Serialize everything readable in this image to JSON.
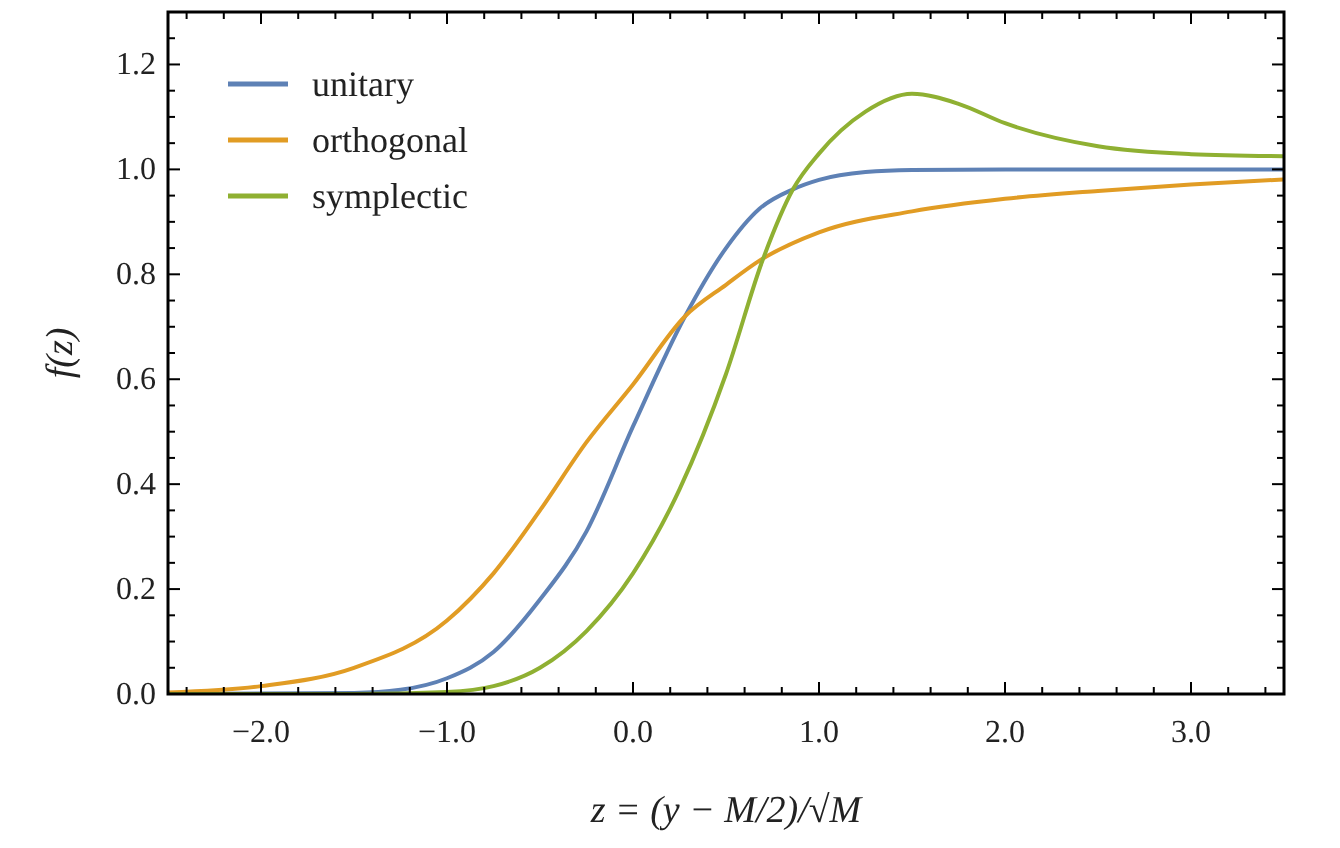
{
  "chart_data": {
    "type": "line",
    "xlabel": "z = (y − M/2)/√M",
    "ylabel": "f(z)",
    "legend": "top left",
    "grid": false,
    "line_style": "solid",
    "marker": "none",
    "xlim": [
      -2.5,
      3.5
    ],
    "ylim": [
      0,
      1.3
    ],
    "xticks": [
      {
        "value": -2.4,
        "label": null
      },
      {
        "value": -2.2,
        "label": null
      },
      {
        "value": -2,
        "label": "−2.0"
      },
      {
        "value": -1.8,
        "label": null
      },
      {
        "value": -1.6,
        "label": null
      },
      {
        "value": -1.4,
        "label": null
      },
      {
        "value": -1.2,
        "label": null
      },
      {
        "value": -1,
        "label": "−1.0"
      },
      {
        "value": -0.8,
        "label": null
      },
      {
        "value": -0.6,
        "label": null
      },
      {
        "value": -0.4,
        "label": null
      },
      {
        "value": -0.2,
        "label": null
      },
      {
        "value": 0,
        "label": "0.0"
      },
      {
        "value": 0.2,
        "label": null
      },
      {
        "value": 0.4,
        "label": null
      },
      {
        "value": 0.6,
        "label": null
      },
      {
        "value": 0.8,
        "label": null
      },
      {
        "value": 1,
        "label": "1.0"
      },
      {
        "value": 1.2,
        "label": null
      },
      {
        "value": 1.4,
        "label": null
      },
      {
        "value": 1.6,
        "label": null
      },
      {
        "value": 1.8,
        "label": null
      },
      {
        "value": 2,
        "label": "2.0"
      },
      {
        "value": 2.2,
        "label": null
      },
      {
        "value": 2.4,
        "label": null
      },
      {
        "value": 2.6,
        "label": null
      },
      {
        "value": 2.8,
        "label": null
      },
      {
        "value": 3,
        "label": "3.0"
      },
      {
        "value": 3.2,
        "label": null
      },
      {
        "value": 3.4,
        "label": null
      }
    ],
    "yticks": [
      {
        "value": 0,
        "label": "0.0"
      },
      {
        "value": 0.05,
        "label": null
      },
      {
        "value": 0.1,
        "label": null
      },
      {
        "value": 0.15,
        "label": null
      },
      {
        "value": 0.2,
        "label": "0.2"
      },
      {
        "value": 0.25,
        "label": null
      },
      {
        "value": 0.3,
        "label": null
      },
      {
        "value": 0.35,
        "label": null
      },
      {
        "value": 0.4,
        "label": "0.4"
      },
      {
        "value": 0.45,
        "label": null
      },
      {
        "value": 0.5,
        "label": null
      },
      {
        "value": 0.55,
        "label": null
      },
      {
        "value": 0.6,
        "label": "0.6"
      },
      {
        "value": 0.65,
        "label": null
      },
      {
        "value": 0.7,
        "label": null
      },
      {
        "value": 0.75,
        "label": null
      },
      {
        "value": 0.8,
        "label": "0.8"
      },
      {
        "value": 0.85,
        "label": null
      },
      {
        "value": 0.9,
        "label": null
      },
      {
        "value": 0.95,
        "label": null
      },
      {
        "value": 1,
        "label": "1.0"
      },
      {
        "value": 1.05,
        "label": null
      },
      {
        "value": 1.1,
        "label": null
      },
      {
        "value": 1.15,
        "label": null
      },
      {
        "value": 1.2,
        "label": "1.2"
      },
      {
        "value": 1.25,
        "label": null
      }
    ],
    "series": [
      {
        "name": "unitary",
        "color": "#5e81b5",
        "x": [
          -2.5,
          -1.5,
          -1.25,
          -1,
          -0.75,
          -0.5,
          -0.25,
          0,
          0.28,
          0.5,
          0.68,
          0.86,
          1,
          1.25,
          1.5,
          2,
          2.5,
          3,
          3.5
        ],
        "values": [
          0,
          0.002,
          0.008,
          0.03,
          0.08,
          0.18,
          0.31,
          0.51,
          0.72,
          0.85,
          0.925,
          0.962,
          0.98,
          0.995,
          0.999,
          1,
          1,
          1,
          1
        ]
      },
      {
        "name": "orthogonal",
        "color": "#e19c24",
        "x": [
          -2.5,
          -2,
          -1.5,
          -1,
          -0.75,
          -0.5,
          -0.25,
          0,
          0.28,
          0.5,
          0.68,
          1,
          1.5,
          2,
          2.5,
          3,
          3.5
        ],
        "values": [
          0.003,
          0.015,
          0.05,
          0.14,
          0.23,
          0.35,
          0.48,
          0.59,
          0.72,
          0.78,
          0.826,
          0.88,
          0.92,
          0.944,
          0.959,
          0.971,
          0.981
        ]
      },
      {
        "name": "symplectic",
        "color": "#8fb032",
        "x": [
          -2.5,
          -1.5,
          -1,
          -0.75,
          -0.5,
          -0.25,
          0,
          0.25,
          0.5,
          0.7,
          0.86,
          1,
          1.25,
          1.5,
          1.75,
          2,
          2.5,
          3,
          3.5
        ],
        "values": [
          0,
          0,
          0.004,
          0.015,
          0.05,
          0.12,
          0.23,
          0.39,
          0.61,
          0.83,
          0.962,
          1.03,
          1.11,
          1.144,
          1.125,
          1.088,
          1.044,
          1.029,
          1.025
        ]
      }
    ]
  }
}
